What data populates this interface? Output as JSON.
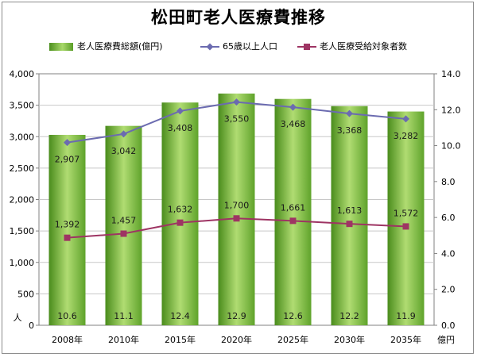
{
  "chart_data": {
    "type": "bar",
    "title": "松田町老人医療費推移",
    "categories": [
      "2008年",
      "2010年",
      "2015年",
      "2020年",
      "2025年",
      "2030年",
      "2035年"
    ],
    "series": [
      {
        "name": "老人医療費総額(億円)",
        "type": "bar",
        "axis": "right",
        "values": [
          10.6,
          11.1,
          12.4,
          12.9,
          12.6,
          12.2,
          11.9
        ],
        "color": "#7cbd3e"
      },
      {
        "name": "65歳以上人口",
        "type": "line",
        "axis": "left",
        "values": [
          2907,
          3042,
          3408,
          3550,
          3468,
          3368,
          3282
        ],
        "color": "#6b6bb0",
        "marker": "diamond"
      },
      {
        "name": "老人医療受給対象者数",
        "type": "line",
        "axis": "left",
        "values": [
          1392,
          1457,
          1632,
          1700,
          1661,
          1613,
          1572
        ],
        "color": "#9e3463",
        "marker": "square"
      }
    ],
    "y_left": {
      "unit_label": "人",
      "ylim": [
        0,
        4000
      ],
      "ticks": [
        "0",
        "500",
        "1,000",
        "1,500",
        "2,000",
        "2,500",
        "3,000",
        "3,500",
        "4,000"
      ]
    },
    "y_right": {
      "unit_label": "億円",
      "ylim": [
        0,
        14
      ],
      "ticks": [
        "0.0",
        "2.0",
        "4.0",
        "6.0",
        "8.0",
        "10.0",
        "12.0",
        "14.0"
      ]
    },
    "grid": true,
    "legend_position": "top"
  }
}
